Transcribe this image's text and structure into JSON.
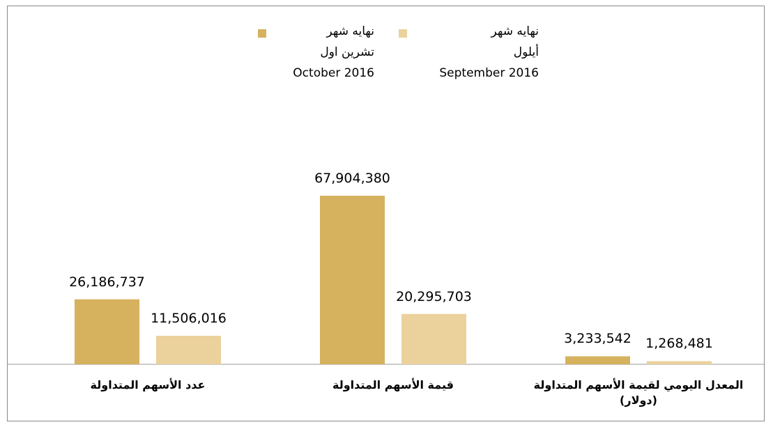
{
  "chart_data": {
    "type": "bar",
    "categories": [
      "عدد الأسهم المتداولة",
      "قيمة الأسهم المتداولة",
      "المعدل اليومي لقيمة الأسهم المتداولة (دولار)"
    ],
    "series": [
      {
        "name": "نهايه شهر\nتشرين اول\nOctober 2016",
        "color": "#d6b25e",
        "values": [
          26186737,
          67904380,
          3233542
        ],
        "value_labels": [
          "26,186,737",
          "67,904,380",
          "3,233,542"
        ]
      },
      {
        "name": "نهايه شهر\nأيلول\nSeptember 2016",
        "color": "#ebd19b",
        "values": [
          11506016,
          20295703,
          1268481
        ],
        "value_labels": [
          "11,506,016",
          "20,295,703",
          "1,268,481"
        ]
      }
    ],
    "legend": "top"
  }
}
